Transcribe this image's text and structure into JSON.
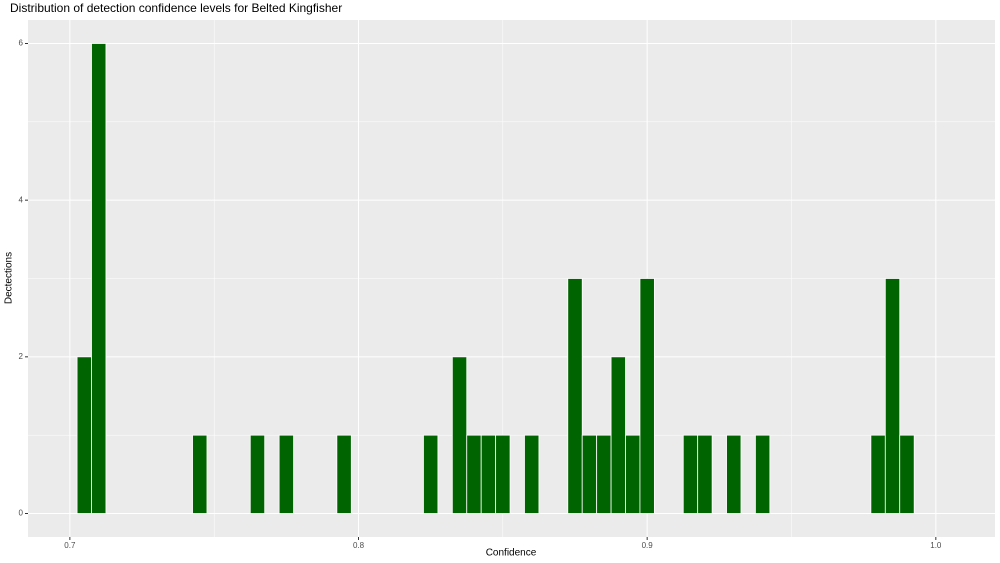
{
  "chart_data": {
    "type": "histogram",
    "title": "Distribution of detection confidence levels for Belted Kingfisher",
    "x_label": "Confidence",
    "y_label": "Dectections",
    "bins": [
      0.7025,
      0.7075,
      0.7125,
      0.7175,
      0.7225,
      0.7275,
      0.7325,
      0.7375,
      0.7425,
      0.7475,
      0.7525,
      0.7575,
      0.7625,
      0.7675,
      0.7725,
      0.7775,
      0.7825,
      0.7875,
      0.7925,
      0.7975,
      0.8025,
      0.8075,
      0.8125,
      0.8175,
      0.8225,
      0.8275,
      0.8325,
      0.8375,
      0.8425,
      0.8475,
      0.8525,
      0.8575,
      0.8625,
      0.8675,
      0.8725,
      0.8775,
      0.8825,
      0.8875,
      0.8925,
      0.8975,
      0.9025,
      0.9075,
      0.9125,
      0.9175,
      0.9225,
      0.9275,
      0.9325,
      0.9375,
      0.9425,
      0.9475,
      0.9525,
      0.9575,
      0.9625,
      0.9675,
      0.9725,
      0.9775,
      0.9825,
      0.9875,
      0.9925
    ],
    "values": [
      2,
      6,
      0,
      0,
      0,
      0,
      0,
      0,
      1,
      0,
      0,
      0,
      1,
      0,
      1,
      0,
      0,
      0,
      1,
      0,
      0,
      0,
      0,
      0,
      1,
      0,
      2,
      1,
      1,
      1,
      0,
      1,
      0,
      0,
      3,
      1,
      1,
      2,
      1,
      3,
      0,
      0,
      1,
      1,
      0,
      1,
      0,
      1,
      0,
      0,
      0,
      0,
      0,
      0,
      0,
      1,
      3,
      1
    ],
    "color": "#006400",
    "xlim": [
      0.6855,
      1.0205
    ],
    "xticks": [
      0.7,
      0.8,
      0.9,
      {
        "value": 1,
        "label": "1.0"
      }
    ],
    "ylim": [
      -0.3,
      6.3
    ],
    "yticks": [
      0,
      2,
      4,
      6
    ],
    "grid": true
  }
}
